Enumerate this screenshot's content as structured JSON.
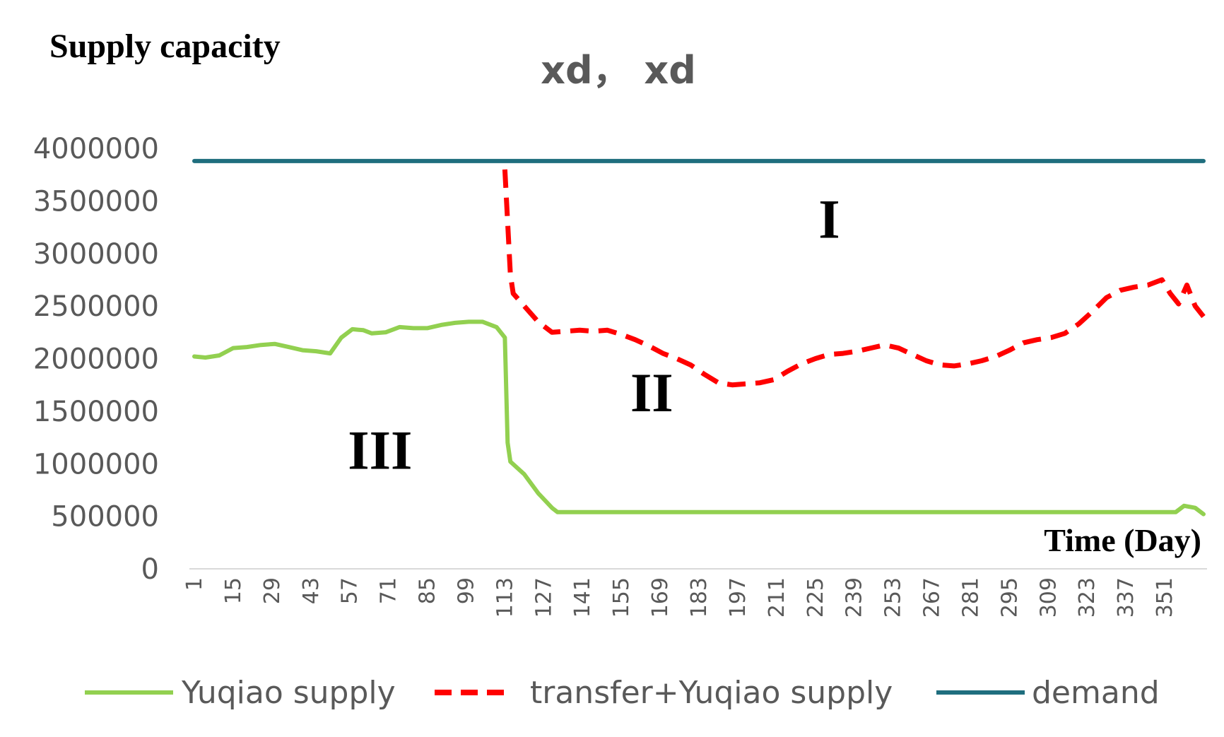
{
  "chart_data": {
    "type": "line",
    "title": "xd， xd",
    "ylabel": "Supply capacity",
    "xlabel": "Time (Day)",
    "ylim": [
      0,
      4000000
    ],
    "yticks": [
      0,
      500000,
      1000000,
      1500000,
      2000000,
      2500000,
      3000000,
      3500000,
      4000000
    ],
    "xlim": [
      1,
      365
    ],
    "xticks": [
      1,
      15,
      29,
      43,
      57,
      71,
      85,
      99,
      113,
      127,
      141,
      155,
      169,
      183,
      197,
      211,
      225,
      239,
      253,
      267,
      281,
      295,
      309,
      323,
      337,
      351
    ],
    "grid": false,
    "legend_position": "bottom",
    "region_labels": [
      {
        "text": "I",
        "x": 230,
        "y": 3150000
      },
      {
        "text": "II",
        "x": 166,
        "y": 1500000
      },
      {
        "text": "III",
        "x": 68,
        "y": 950000
      }
    ],
    "series": [
      {
        "name": "Yuqiao supply",
        "color": "#92d050",
        "style": "solid",
        "x": [
          1,
          5,
          10,
          15,
          20,
          25,
          30,
          35,
          40,
          45,
          50,
          54,
          58,
          62,
          65,
          70,
          75,
          80,
          85,
          90,
          95,
          100,
          105,
          110,
          113,
          114,
          115,
          120,
          125,
          130,
          132,
          140,
          160,
          200,
          250,
          300,
          340,
          355,
          358,
          362,
          365
        ],
        "y": [
          2020000,
          2010000,
          2030000,
          2100000,
          2110000,
          2130000,
          2140000,
          2110000,
          2080000,
          2070000,
          2050000,
          2200000,
          2280000,
          2270000,
          2240000,
          2250000,
          2300000,
          2290000,
          2290000,
          2320000,
          2340000,
          2350000,
          2350000,
          2300000,
          2200000,
          1200000,
          1020000,
          900000,
          720000,
          580000,
          540000,
          540000,
          540000,
          540000,
          540000,
          540000,
          540000,
          540000,
          600000,
          580000,
          520000
        ]
      },
      {
        "name": "transfer+Yuqiao supply",
        "color": "#ff0000",
        "style": "dashed",
        "x": [
          113,
          114,
          115,
          116,
          120,
          125,
          130,
          135,
          140,
          145,
          150,
          155,
          160,
          165,
          170,
          175,
          180,
          185,
          190,
          195,
          200,
          205,
          210,
          215,
          220,
          225,
          230,
          235,
          240,
          245,
          250,
          255,
          260,
          265,
          270,
          275,
          280,
          285,
          290,
          295,
          300,
          305,
          310,
          315,
          320,
          325,
          330,
          335,
          340,
          345,
          350,
          353,
          356,
          359,
          362,
          365
        ],
        "y": [
          3800000,
          3300000,
          2800000,
          2620000,
          2500000,
          2350000,
          2250000,
          2260000,
          2270000,
          2260000,
          2270000,
          2230000,
          2180000,
          2120000,
          2050000,
          2000000,
          1940000,
          1850000,
          1770000,
          1750000,
          1760000,
          1770000,
          1800000,
          1880000,
          1950000,
          2000000,
          2040000,
          2050000,
          2070000,
          2100000,
          2130000,
          2100000,
          2040000,
          1980000,
          1940000,
          1930000,
          1950000,
          1980000,
          2020000,
          2080000,
          2150000,
          2180000,
          2200000,
          2240000,
          2330000,
          2450000,
          2580000,
          2650000,
          2680000,
          2700000,
          2750000,
          2620000,
          2520000,
          2700000,
          2500000,
          2400000
        ]
      },
      {
        "name": "demand",
        "color": "#1f6e7e",
        "style": "solid",
        "x": [
          1,
          365
        ],
        "y": [
          3880000,
          3880000
        ]
      }
    ]
  }
}
